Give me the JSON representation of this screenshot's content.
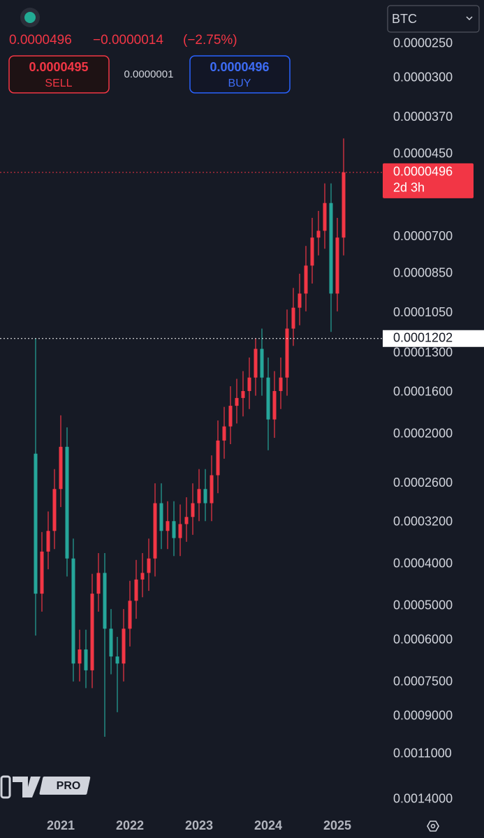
{
  "toolbar": {
    "symbol": "BTC",
    "price": "0.0000496",
    "change": "−0.0000014",
    "change_pct": "(−2.75%)",
    "sell_price": "0.0000495",
    "sell": "SELL",
    "spread": "0.0000001",
    "buy_price": "0.0000496",
    "buy": "BUY",
    "badge": "PRO"
  },
  "chart_data": {
    "type": "candlestick",
    "categories": [
      null,
      null,
      null,
      null,
      "2021",
      null,
      null,
      null,
      null,
      null,
      null,
      null,
      null,
      null,
      null,
      "2022",
      null,
      null,
      null,
      null,
      null,
      null,
      null,
      null,
      null,
      null,
      "2023",
      null,
      null,
      null,
      null,
      null,
      null,
      null,
      null,
      null,
      null,
      "2024",
      null,
      null,
      null,
      null,
      null,
      null,
      null,
      null,
      null,
      null,
      "2025",
      null
    ],
    "open": [
      0.000222,
      0.000468,
      0.000374,
      0.000335,
      0.000268,
      0.000214,
      0.000388,
      0.000679,
      0.00063,
      0.000704,
      0.000468,
      0.000419,
      0.000564,
      0.000654,
      0.000679,
      0.000564,
      0.000486,
      0.000434,
      0.000419,
      0.000388,
      0.000289,
      0.000335,
      0.000318,
      0.000348,
      0.000323,
      0.000311,
      0.000289,
      0.000268,
      0.000289,
      0.000249,
      0.000207,
      0.000192,
      0.000172,
      0.000165,
      0.000159,
      0.000148,
      0.000127,
      0.000148,
      0.000185,
      0.000159,
      0.000148,
      0.000114,
      0.000102,
      9.46e-05,
      8.15e-05,
      7.02e-05,
      6.77e-05,
      5.84e-05,
      9.46e-05,
      7.02e-05
    ],
    "high": [
      0.000585,
      0.000515,
      0.000411,
      0.000369,
      0.000295,
      0.000427,
      0.000747,
      0.000747,
      0.000774,
      0.000774,
      0.000515,
      0.001003,
      0.000719,
      0.00088,
      0.000747,
      0.00062,
      0.000535,
      0.000477,
      0.000461,
      0.000427,
      0.000369,
      0.000369,
      0.000383,
      0.000383,
      0.000355,
      0.000342,
      0.000318,
      0.000318,
      0.000318,
      0.000274,
      0.000228,
      0.000211,
      0.000189,
      0.000182,
      0.000175,
      0.000163,
      0.000163,
      0.000218,
      0.000204,
      0.000175,
      0.000163,
      0.000125,
      0.000112,
      0.000104,
      8.97e-05,
      7.72e-05,
      7.45e-05,
      0.000116,
      0.000104,
      7.72e-05
    ],
    "low": [
      0.0001202,
      0.000337,
      0.000302,
      0.000241,
      0.000181,
      0.000193,
      0.000349,
      0.000567,
      0.000567,
      0.000421,
      0.000377,
      0.000377,
      0.000508,
      0.000589,
      0.000508,
      0.000437,
      0.000391,
      0.000377,
      0.000349,
      0.00026,
      0.00026,
      0.000286,
      0.000286,
      0.000291,
      0.00028,
      0.00026,
      0.000241,
      0.000241,
      0.000224,
      0.000186,
      0.000173,
      0.000155,
      0.000149,
      0.000143,
      0.000133,
      0.0001202,
      0.000114,
      0.000133,
      0.000143,
      0.000133,
      0.000103,
      9.18e-05,
      8.51e-05,
      7.34e-05,
      6.32e-05,
      6.09e-05,
      5.26e-05,
      5.26e-05,
      6.32e-05,
      4.14e-05
    ],
    "close": [
      0.000468,
      0.000374,
      0.000335,
      0.000268,
      0.000214,
      0.000388,
      0.000679,
      0.00063,
      0.000704,
      0.000468,
      0.000419,
      0.000564,
      0.000654,
      0.000679,
      0.000564,
      0.000486,
      0.000434,
      0.000419,
      0.000388,
      0.000289,
      0.000335,
      0.000318,
      0.000348,
      0.000323,
      0.000311,
      0.000289,
      0.000268,
      0.000289,
      0.000249,
      0.000207,
      0.000192,
      0.000172,
      0.000165,
      0.000159,
      0.000148,
      0.000127,
      0.000148,
      0.000185,
      0.000159,
      0.000148,
      0.000114,
      0.000102,
      9.46e-05,
      8.15e-05,
      7.02e-05,
      6.77e-05,
      5.84e-05,
      9.46e-05,
      7.02e-05,
      4.96e-05
    ],
    "up_color": "#26a69a",
    "down_color": "#f23645",
    "log_scale": true,
    "inverted": true,
    "grid": false,
    "ylim": [
      1.98e-05,
      0.00151
    ],
    "yticks": [
      {
        "value": 2.5e-05,
        "label": "0.0000250"
      },
      {
        "value": 3e-05,
        "label": "0.0000300"
      },
      {
        "value": 3.7e-05,
        "label": "0.0000370"
      },
      {
        "value": 4.5e-05,
        "label": "0.0000450"
      },
      {
        "value": 7e-05,
        "label": "0.0000700"
      },
      {
        "value": 8.5e-05,
        "label": "0.0000850"
      },
      {
        "value": 0.000105,
        "label": "0.0001050"
      },
      {
        "value": 0.00013,
        "label": "0.0001300"
      },
      {
        "value": 0.00016,
        "label": "0.0001600"
      },
      {
        "value": 0.0002,
        "label": "0.0002000"
      },
      {
        "value": 0.00026,
        "label": "0.0002600"
      },
      {
        "value": 0.00032,
        "label": "0.0003200"
      },
      {
        "value": 0.0004,
        "label": "0.0004000"
      },
      {
        "value": 0.0005,
        "label": "0.0005000"
      },
      {
        "value": 0.0006,
        "label": "0.0006000"
      },
      {
        "value": 0.00075,
        "label": "0.0007500"
      },
      {
        "value": 0.0009,
        "label": "0.0009000"
      },
      {
        "value": 0.0011,
        "label": "0.0011000"
      },
      {
        "value": 0.0014,
        "label": "0.0014000"
      }
    ],
    "last_price": {
      "value": 4.96e-05,
      "label": "0.0000496",
      "countdown": "2d 3h",
      "color": "#f23645"
    },
    "price_line": {
      "value": 0.0001202,
      "label": "0.0001202",
      "color": "#ffffff"
    }
  }
}
